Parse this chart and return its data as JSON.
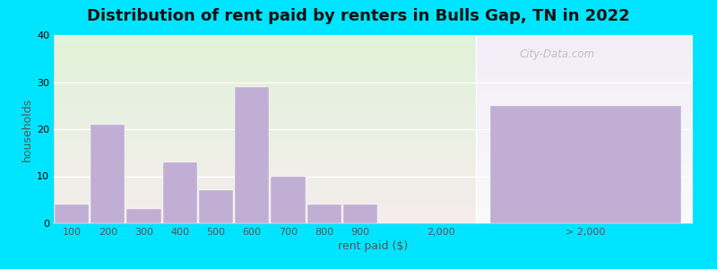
{
  "title": "Distribution of rent paid by renters in Bulls Gap, TN in 2022",
  "xlabel": "rent paid ($)",
  "ylabel": "households",
  "ylim": [
    0,
    40
  ],
  "yticks": [
    0,
    10,
    20,
    30,
    40
  ],
  "bar_categories": [
    "100",
    "200",
    "300",
    "400",
    "500",
    "600",
    "700",
    "800",
    "900"
  ],
  "bar_values": [
    4,
    21,
    3,
    13,
    7,
    29,
    10,
    4,
    4
  ],
  "bar_color": "#c0aed4",
  "gt2000_value": 25,
  "gt2000_label": "> 2,000",
  "tick_2000_label": "2,000",
  "background_outer": "#00e5ff",
  "background_plot_left_top": "#dff0d8",
  "background_plot_left_bottom": "#f0f8ea",
  "background_plot_right": "#f0eaf5",
  "watermark_text": "City-Data.com",
  "title_fontsize": 13,
  "axis_label_fontsize": 9,
  "tick_fontsize": 8
}
